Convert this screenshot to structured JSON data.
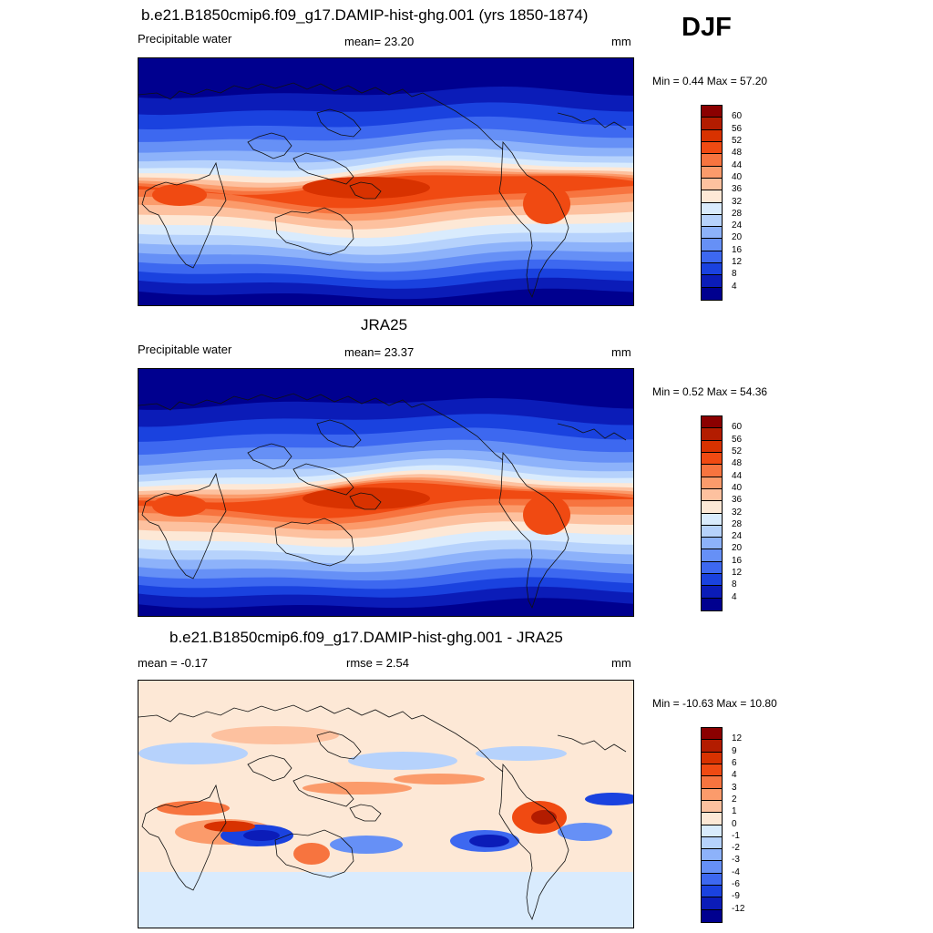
{
  "season": "DJF",
  "panels": [
    {
      "id": "model",
      "title": "b.e21.B1850cmip6.f09_g17.DAMIP-hist-ghg.001 (yrs 1850-1874)",
      "left_label": "Precipitable water",
      "center_label": "mean=  23.20",
      "right_label": "mm",
      "minmax": "Min =   0.44 Max =  57.20",
      "field": "absolute"
    },
    {
      "id": "obs",
      "title": "JRA25",
      "left_label": "Precipitable water",
      "center_label": "mean=  23.37",
      "right_label": "mm",
      "minmax": "Min =   0.52 Max =  54.36",
      "field": "absolute"
    },
    {
      "id": "diff",
      "title": "b.e21.B1850cmip6.f09_g17.DAMIP-hist-ghg.001 - JRA25",
      "left_label": "mean =  -0.17",
      "center_label": "rmse =   2.54",
      "right_label": "mm",
      "minmax": "Min = -10.63 Max =  10.80",
      "field": "difference"
    }
  ],
  "colorbars": {
    "absolute": {
      "labels": [
        "60",
        "56",
        "52",
        "48",
        "44",
        "40",
        "36",
        "32",
        "28",
        "24",
        "20",
        "16",
        "12",
        "8",
        "4"
      ],
      "colors": [
        "#8b0000",
        "#b31c00",
        "#d83200",
        "#f04a12",
        "#f7743f",
        "#fb9b6b",
        "#fdc19f",
        "#fde8d6",
        "#d9ebfd",
        "#b6d2fc",
        "#8db2fa",
        "#6690f6",
        "#3d68f0",
        "#1a42df",
        "#0b1cb8",
        "#00008f"
      ]
    },
    "difference": {
      "labels": [
        "12",
        "9",
        "6",
        "4",
        "3",
        "2",
        "1",
        "0",
        "-1",
        "-2",
        "-3",
        "-4",
        "-6",
        "-9",
        "-12"
      ],
      "colors": [
        "#8b0000",
        "#b31c00",
        "#d83200",
        "#f04a12",
        "#f7743f",
        "#fb9b6b",
        "#fdc19f",
        "#fde8d6",
        "#d9ebfd",
        "#b6d2fc",
        "#8db2fa",
        "#6690f6",
        "#3d68f0",
        "#1a42df",
        "#0b1cb8",
        "#00008f"
      ]
    }
  }
}
